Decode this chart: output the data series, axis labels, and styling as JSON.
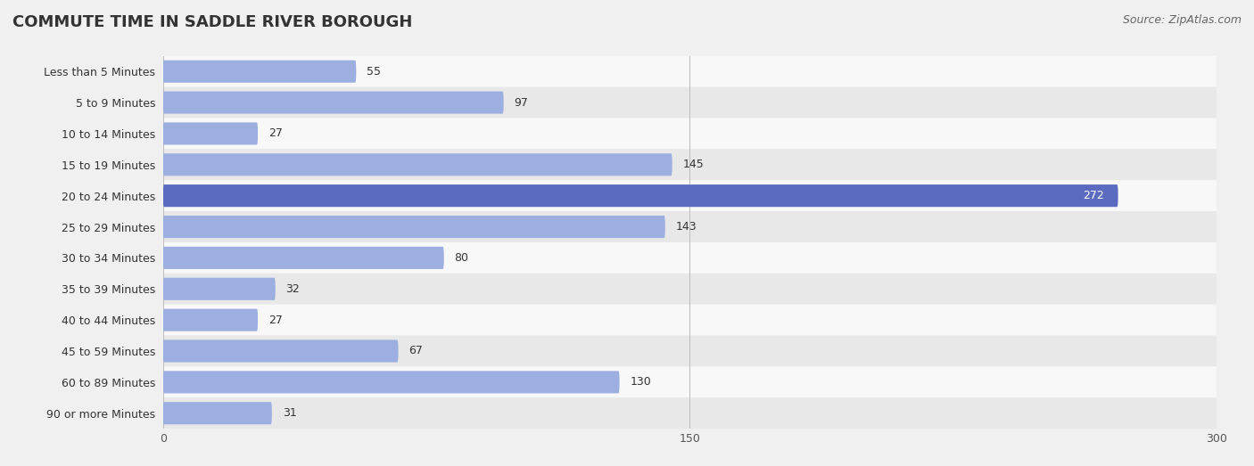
{
  "title": "Commute Time in Saddle River borough",
  "title_display": "COMMUTE TIME IN SADDLE RIVER BOROUGH",
  "source": "Source: ZipAtlas.com",
  "categories": [
    "Less than 5 Minutes",
    "5 to 9 Minutes",
    "10 to 14 Minutes",
    "15 to 19 Minutes",
    "20 to 24 Minutes",
    "25 to 29 Minutes",
    "30 to 34 Minutes",
    "35 to 39 Minutes",
    "40 to 44 Minutes",
    "45 to 59 Minutes",
    "60 to 89 Minutes",
    "90 or more Minutes"
  ],
  "values": [
    55,
    97,
    27,
    145,
    272,
    143,
    80,
    32,
    27,
    67,
    130,
    31
  ],
  "bar_color_normal": "#9daee0",
  "bar_color_highlight": "#5b6bbf",
  "highlight_index": 4,
  "xlim": [
    0,
    300
  ],
  "xticks": [
    0,
    150,
    300
  ],
  "bg_color": "#f0f0f0",
  "row_bg_light": "#e8e8e8",
  "row_bg_white": "#f8f8f8",
  "title_fontsize": 13,
  "label_fontsize": 9,
  "value_fontsize": 9,
  "source_fontsize": 9
}
